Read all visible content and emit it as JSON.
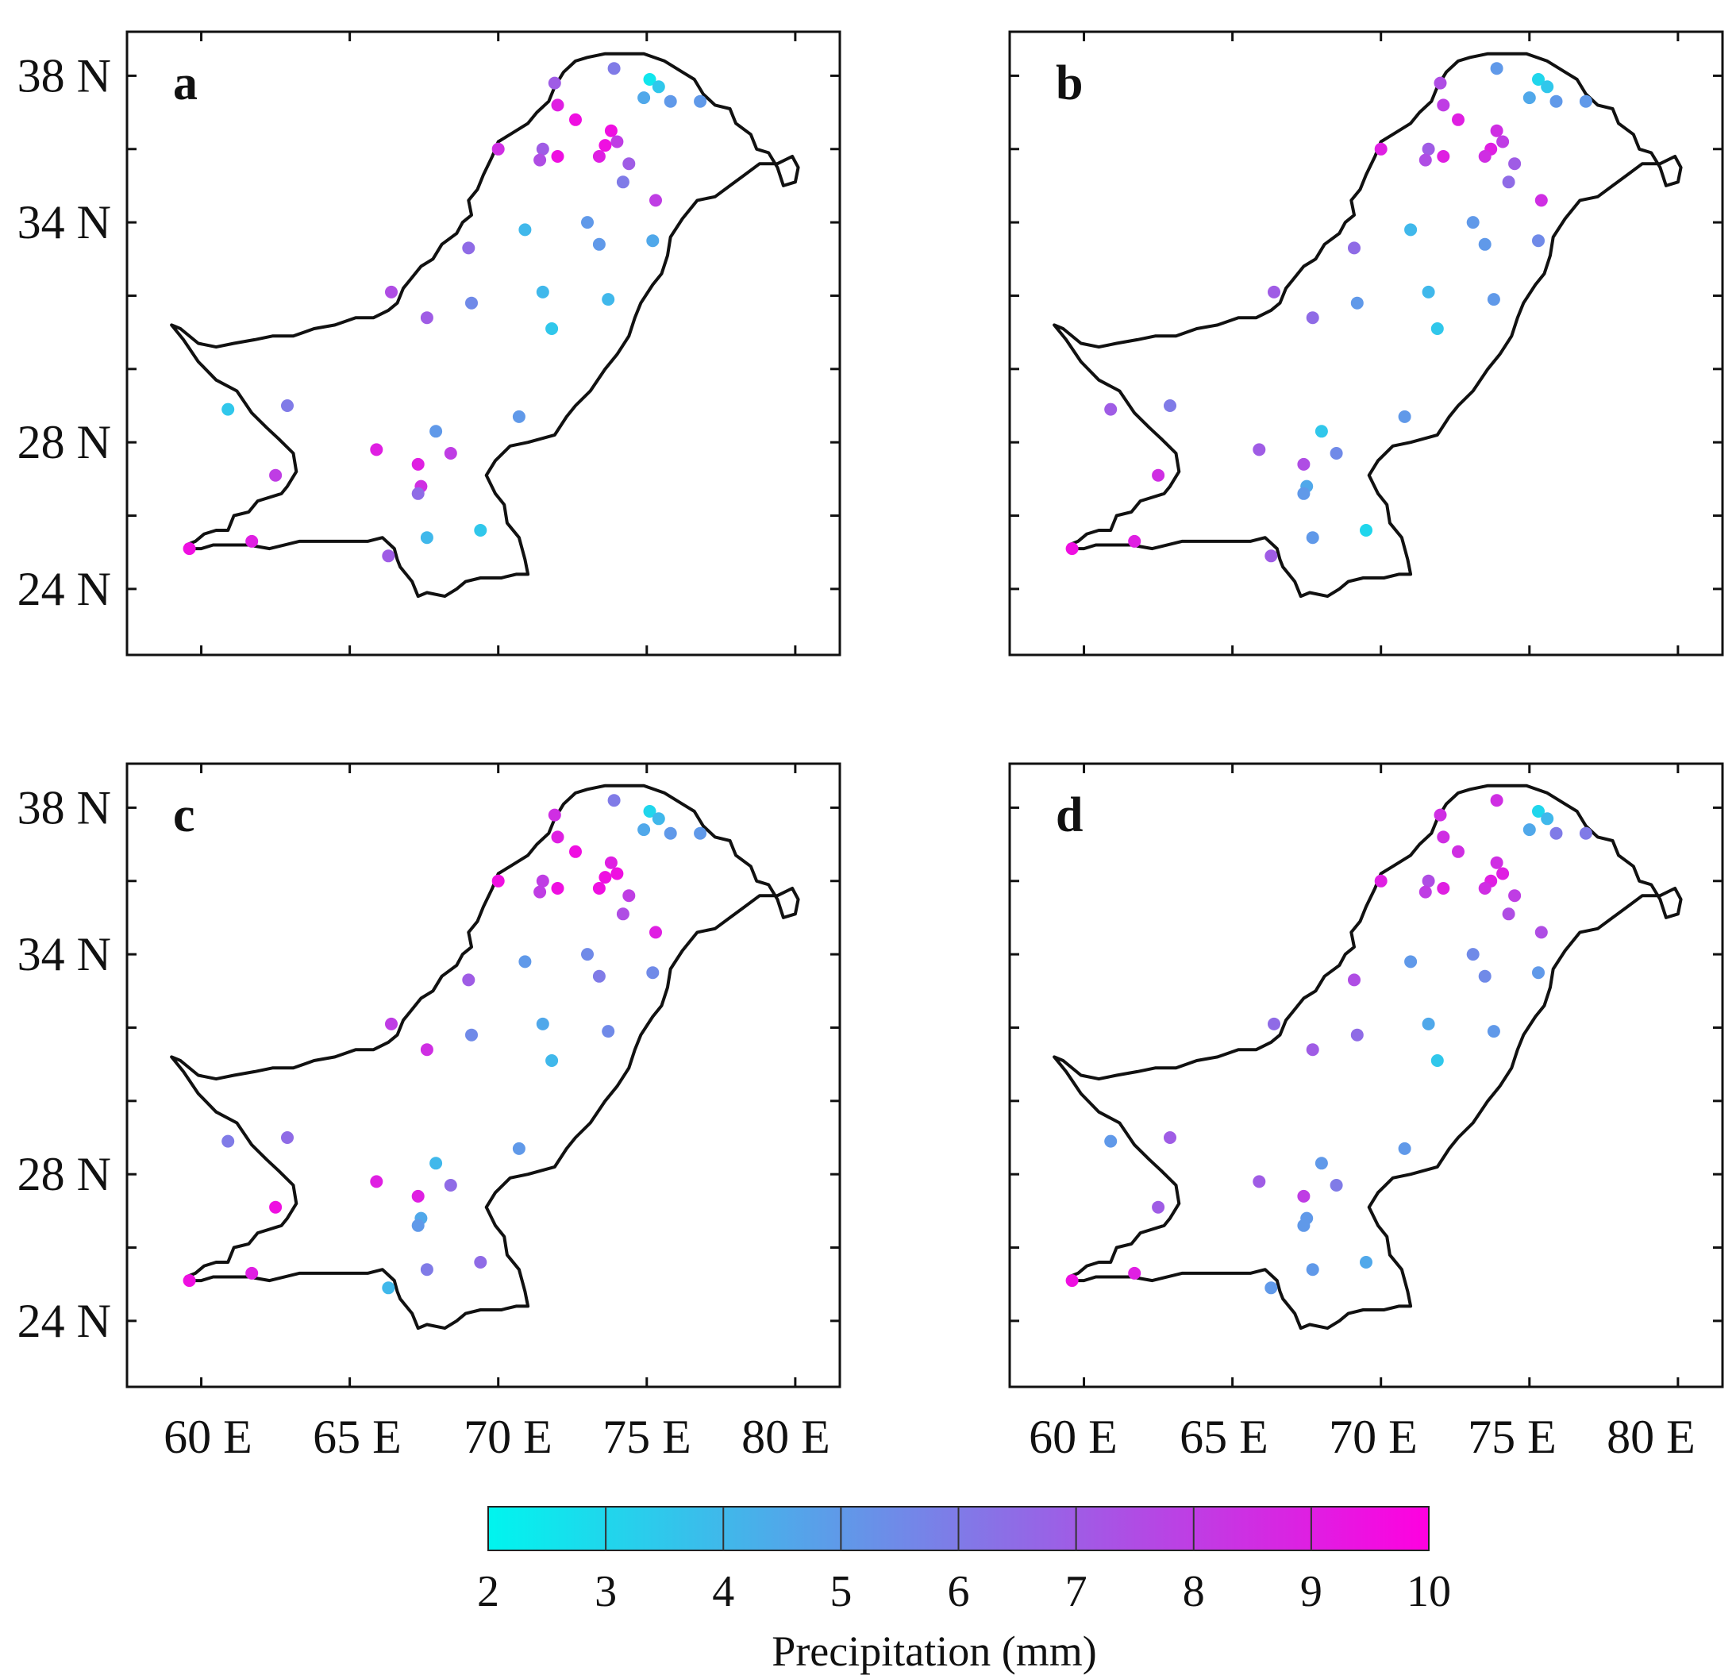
{
  "figure": {
    "x_ticks": [
      "60 E",
      "65 E",
      "70 E",
      "75 E",
      "80 E"
    ],
    "y_ticks": [
      "24 N",
      "28 N",
      "34 N",
      "38 N"
    ],
    "panels": [
      {
        "letter": "a"
      },
      {
        "letter": "b"
      },
      {
        "letter": "c"
      },
      {
        "letter": "d"
      }
    ],
    "colorbar": {
      "ticks": [
        "2",
        "3",
        "4",
        "5",
        "6",
        "7",
        "8",
        "9",
        "10"
      ],
      "title": "Precipitation (mm)",
      "color_low": "#00f5ee",
      "color_high": "#ff00e0"
    }
  },
  "chart_data": [
    {
      "type": "scatter",
      "panel": "a",
      "xlabel": "",
      "ylabel": "",
      "xlim": [
        57.5,
        81.5
      ],
      "ylim": [
        22.2,
        39.2
      ],
      "x_tick_values": [
        60,
        65,
        70,
        75,
        80
      ],
      "y_tick_values": [
        24,
        26,
        28,
        30,
        32,
        34,
        36,
        38
      ],
      "colorbar_range": [
        2,
        10
      ],
      "points": [
        {
          "lon": 75.1,
          "lat": 37.9,
          "value": 2.5
        },
        {
          "lon": 75.4,
          "lat": 37.7,
          "value": 3.5
        },
        {
          "lon": 74.9,
          "lat": 37.4,
          "value": 4.5
        },
        {
          "lon": 75.8,
          "lat": 37.3,
          "value": 5.0
        },
        {
          "lon": 76.8,
          "lat": 37.3,
          "value": 5.0
        },
        {
          "lon": 73.9,
          "lat": 38.2,
          "value": 6.0
        },
        {
          "lon": 71.9,
          "lat": 37.8,
          "value": 7.0
        },
        {
          "lon": 72.0,
          "lat": 37.2,
          "value": 9.0
        },
        {
          "lon": 72.6,
          "lat": 36.8,
          "value": 9.5
        },
        {
          "lon": 73.8,
          "lat": 36.5,
          "value": 9.5
        },
        {
          "lon": 74.0,
          "lat": 36.2,
          "value": 8.0
        },
        {
          "lon": 73.6,
          "lat": 36.1,
          "value": 9.5
        },
        {
          "lon": 73.4,
          "lat": 35.8,
          "value": 9.0
        },
        {
          "lon": 74.4,
          "lat": 35.6,
          "value": 7.0
        },
        {
          "lon": 74.2,
          "lat": 35.1,
          "value": 6.0
        },
        {
          "lon": 70.0,
          "lat": 36.0,
          "value": 8.5
        },
        {
          "lon": 71.5,
          "lat": 36.0,
          "value": 7.0
        },
        {
          "lon": 71.4,
          "lat": 35.7,
          "value": 7.5
        },
        {
          "lon": 72.0,
          "lat": 35.8,
          "value": 9.5
        },
        {
          "lon": 75.3,
          "lat": 34.6,
          "value": 8.0
        },
        {
          "lon": 73.0,
          "lat": 34.0,
          "value": 5.0
        },
        {
          "lon": 70.9,
          "lat": 33.8,
          "value": 4.0
        },
        {
          "lon": 69.0,
          "lat": 33.3,
          "value": 6.5
        },
        {
          "lon": 73.4,
          "lat": 33.4,
          "value": 5.0
        },
        {
          "lon": 75.2,
          "lat": 33.5,
          "value": 4.5
        },
        {
          "lon": 66.4,
          "lat": 32.1,
          "value": 7.5
        },
        {
          "lon": 71.5,
          "lat": 32.1,
          "value": 4.0
        },
        {
          "lon": 69.1,
          "lat": 31.8,
          "value": 5.5
        },
        {
          "lon": 73.7,
          "lat": 31.9,
          "value": 4.0
        },
        {
          "lon": 71.8,
          "lat": 31.1,
          "value": 3.5
        },
        {
          "lon": 67.6,
          "lat": 31.4,
          "value": 7.0
        },
        {
          "lon": 60.9,
          "lat": 28.9,
          "value": 3.5
        },
        {
          "lon": 62.9,
          "lat": 29.0,
          "value": 6.0
        },
        {
          "lon": 70.7,
          "lat": 28.7,
          "value": 5.0
        },
        {
          "lon": 67.9,
          "lat": 28.3,
          "value": 5.0
        },
        {
          "lon": 65.9,
          "lat": 27.8,
          "value": 9.0
        },
        {
          "lon": 68.4,
          "lat": 27.7,
          "value": 8.0
        },
        {
          "lon": 67.3,
          "lat": 27.4,
          "value": 9.0
        },
        {
          "lon": 62.5,
          "lat": 27.1,
          "value": 8.0
        },
        {
          "lon": 67.4,
          "lat": 26.8,
          "value": 8.5
        },
        {
          "lon": 67.3,
          "lat": 26.6,
          "value": 6.5
        },
        {
          "lon": 67.6,
          "lat": 25.4,
          "value": 4.0
        },
        {
          "lon": 69.4,
          "lat": 25.6,
          "value": 3.5
        },
        {
          "lon": 59.6,
          "lat": 25.1,
          "value": 9.5
        },
        {
          "lon": 61.7,
          "lat": 25.3,
          "value": 9.0
        },
        {
          "lon": 66.3,
          "lat": 24.9,
          "value": 7.0
        }
      ]
    },
    {
      "type": "scatter",
      "panel": "b",
      "xlabel": "",
      "ylabel": "",
      "xlim": [
        57.5,
        81.5
      ],
      "ylim": [
        22.2,
        39.2
      ],
      "x_tick_values": [
        60,
        65,
        70,
        75,
        80
      ],
      "y_tick_values": [
        24,
        26,
        28,
        30,
        32,
        34,
        36,
        38
      ],
      "colorbar_range": [
        2,
        10
      ],
      "points": [
        {
          "lon": 75.3,
          "lat": 37.9,
          "value": 3.0
        },
        {
          "lon": 75.6,
          "lat": 37.7,
          "value": 3.5
        },
        {
          "lon": 75.0,
          "lat": 37.4,
          "value": 4.5
        },
        {
          "lon": 75.9,
          "lat": 37.3,
          "value": 5.0
        },
        {
          "lon": 76.9,
          "lat": 37.3,
          "value": 5.0
        },
        {
          "lon": 73.9,
          "lat": 38.2,
          "value": 5.0
        },
        {
          "lon": 72.0,
          "lat": 37.8,
          "value": 7.5
        },
        {
          "lon": 72.1,
          "lat": 37.2,
          "value": 8.0
        },
        {
          "lon": 72.6,
          "lat": 36.8,
          "value": 9.0
        },
        {
          "lon": 73.9,
          "lat": 36.5,
          "value": 8.5
        },
        {
          "lon": 74.1,
          "lat": 36.2,
          "value": 8.0
        },
        {
          "lon": 73.7,
          "lat": 36.0,
          "value": 9.0
        },
        {
          "lon": 73.5,
          "lat": 35.8,
          "value": 8.5
        },
        {
          "lon": 74.5,
          "lat": 35.6,
          "value": 7.0
        },
        {
          "lon": 74.3,
          "lat": 35.1,
          "value": 6.5
        },
        {
          "lon": 70.0,
          "lat": 36.0,
          "value": 9.0
        },
        {
          "lon": 71.6,
          "lat": 36.0,
          "value": 7.0
        },
        {
          "lon": 71.5,
          "lat": 35.7,
          "value": 7.5
        },
        {
          "lon": 72.1,
          "lat": 35.8,
          "value": 9.0
        },
        {
          "lon": 75.4,
          "lat": 34.6,
          "value": 8.5
        },
        {
          "lon": 73.1,
          "lat": 34.0,
          "value": 5.0
        },
        {
          "lon": 71.0,
          "lat": 33.8,
          "value": 4.0
        },
        {
          "lon": 69.1,
          "lat": 33.3,
          "value": 6.5
        },
        {
          "lon": 73.5,
          "lat": 33.4,
          "value": 5.0
        },
        {
          "lon": 75.3,
          "lat": 33.5,
          "value": 5.5
        },
        {
          "lon": 66.4,
          "lat": 32.1,
          "value": 7.0
        },
        {
          "lon": 71.6,
          "lat": 32.1,
          "value": 4.0
        },
        {
          "lon": 69.2,
          "lat": 31.8,
          "value": 5.0
        },
        {
          "lon": 73.8,
          "lat": 31.9,
          "value": 5.0
        },
        {
          "lon": 71.9,
          "lat": 31.1,
          "value": 3.5
        },
        {
          "lon": 67.7,
          "lat": 31.4,
          "value": 6.5
        },
        {
          "lon": 60.9,
          "lat": 28.9,
          "value": 7.0
        },
        {
          "lon": 62.9,
          "lat": 29.0,
          "value": 6.0
        },
        {
          "lon": 70.8,
          "lat": 28.7,
          "value": 5.0
        },
        {
          "lon": 68.0,
          "lat": 28.3,
          "value": 3.5
        },
        {
          "lon": 65.9,
          "lat": 27.8,
          "value": 7.0
        },
        {
          "lon": 68.5,
          "lat": 27.7,
          "value": 5.5
        },
        {
          "lon": 67.4,
          "lat": 27.4,
          "value": 7.5
        },
        {
          "lon": 62.5,
          "lat": 27.1,
          "value": 8.5
        },
        {
          "lon": 67.5,
          "lat": 26.8,
          "value": 4.5
        },
        {
          "lon": 67.4,
          "lat": 26.6,
          "value": 5.0
        },
        {
          "lon": 67.7,
          "lat": 25.4,
          "value": 5.0
        },
        {
          "lon": 69.5,
          "lat": 25.6,
          "value": 3.0
        },
        {
          "lon": 59.6,
          "lat": 25.1,
          "value": 9.5
        },
        {
          "lon": 61.7,
          "lat": 25.3,
          "value": 9.0
        },
        {
          "lon": 66.3,
          "lat": 24.9,
          "value": 7.0
        }
      ]
    },
    {
      "type": "scatter",
      "panel": "c",
      "xlabel": "",
      "ylabel": "",
      "xlim": [
        57.5,
        81.5
      ],
      "ylim": [
        22.2,
        39.2
      ],
      "x_tick_values": [
        60,
        65,
        70,
        75,
        80
      ],
      "y_tick_values": [
        24,
        26,
        28,
        30,
        32,
        34,
        36,
        38
      ],
      "colorbar_range": [
        2,
        10
      ],
      "points": [
        {
          "lon": 75.1,
          "lat": 37.9,
          "value": 3.0
        },
        {
          "lon": 75.4,
          "lat": 37.7,
          "value": 4.0
        },
        {
          "lon": 74.9,
          "lat": 37.4,
          "value": 4.5
        },
        {
          "lon": 75.8,
          "lat": 37.3,
          "value": 5.0
        },
        {
          "lon": 76.8,
          "lat": 37.3,
          "value": 5.0
        },
        {
          "lon": 73.9,
          "lat": 38.2,
          "value": 6.0
        },
        {
          "lon": 71.9,
          "lat": 37.8,
          "value": 8.5
        },
        {
          "lon": 72.0,
          "lat": 37.2,
          "value": 9.0
        },
        {
          "lon": 72.6,
          "lat": 36.8,
          "value": 9.5
        },
        {
          "lon": 73.8,
          "lat": 36.5,
          "value": 9.0
        },
        {
          "lon": 74.0,
          "lat": 36.2,
          "value": 9.5
        },
        {
          "lon": 73.6,
          "lat": 36.1,
          "value": 9.5
        },
        {
          "lon": 73.4,
          "lat": 35.8,
          "value": 9.5
        },
        {
          "lon": 74.4,
          "lat": 35.6,
          "value": 8.0
        },
        {
          "lon": 74.2,
          "lat": 35.1,
          "value": 7.5
        },
        {
          "lon": 70.0,
          "lat": 36.0,
          "value": 9.5
        },
        {
          "lon": 71.5,
          "lat": 36.0,
          "value": 8.0
        },
        {
          "lon": 71.4,
          "lat": 35.7,
          "value": 8.0
        },
        {
          "lon": 72.0,
          "lat": 35.8,
          "value": 9.5
        },
        {
          "lon": 75.3,
          "lat": 34.6,
          "value": 9.0
        },
        {
          "lon": 73.0,
          "lat": 34.0,
          "value": 5.5
        },
        {
          "lon": 70.9,
          "lat": 33.8,
          "value": 5.0
        },
        {
          "lon": 69.0,
          "lat": 33.3,
          "value": 7.0
        },
        {
          "lon": 73.4,
          "lat": 33.4,
          "value": 6.0
        },
        {
          "lon": 75.2,
          "lat": 33.5,
          "value": 5.5
        },
        {
          "lon": 66.4,
          "lat": 32.1,
          "value": 8.0
        },
        {
          "lon": 71.5,
          "lat": 32.1,
          "value": 4.5
        },
        {
          "lon": 69.1,
          "lat": 31.8,
          "value": 5.5
        },
        {
          "lon": 73.7,
          "lat": 31.9,
          "value": 5.5
        },
        {
          "lon": 71.8,
          "lat": 31.1,
          "value": 4.0
        },
        {
          "lon": 67.6,
          "lat": 31.4,
          "value": 8.5
        },
        {
          "lon": 60.9,
          "lat": 28.9,
          "value": 6.0
        },
        {
          "lon": 62.9,
          "lat": 29.0,
          "value": 6.5
        },
        {
          "lon": 70.7,
          "lat": 28.7,
          "value": 5.0
        },
        {
          "lon": 67.9,
          "lat": 28.3,
          "value": 4.0
        },
        {
          "lon": 65.9,
          "lat": 27.8,
          "value": 9.0
        },
        {
          "lon": 68.4,
          "lat": 27.7,
          "value": 6.5
        },
        {
          "lon": 67.3,
          "lat": 27.4,
          "value": 9.0
        },
        {
          "lon": 62.5,
          "lat": 27.1,
          "value": 9.5
        },
        {
          "lon": 67.4,
          "lat": 26.8,
          "value": 4.5
        },
        {
          "lon": 67.3,
          "lat": 26.6,
          "value": 5.0
        },
        {
          "lon": 67.6,
          "lat": 25.4,
          "value": 6.0
        },
        {
          "lon": 69.4,
          "lat": 25.6,
          "value": 6.5
        },
        {
          "lon": 59.6,
          "lat": 25.1,
          "value": 9.5
        },
        {
          "lon": 61.7,
          "lat": 25.3,
          "value": 9.0
        },
        {
          "lon": 66.3,
          "lat": 24.9,
          "value": 4.0
        }
      ]
    },
    {
      "type": "scatter",
      "panel": "d",
      "xlabel": "",
      "ylabel": "",
      "xlim": [
        57.5,
        81.5
      ],
      "ylim": [
        22.2,
        39.2
      ],
      "x_tick_values": [
        60,
        65,
        70,
        75,
        80
      ],
      "y_tick_values": [
        24,
        26,
        28,
        30,
        32,
        34,
        36,
        38
      ],
      "colorbar_range": [
        2,
        10
      ],
      "points": [
        {
          "lon": 75.3,
          "lat": 37.9,
          "value": 3.0
        },
        {
          "lon": 75.6,
          "lat": 37.7,
          "value": 4.0
        },
        {
          "lon": 75.0,
          "lat": 37.4,
          "value": 4.5
        },
        {
          "lon": 75.9,
          "lat": 37.3,
          "value": 6.0
        },
        {
          "lon": 76.9,
          "lat": 37.3,
          "value": 6.0
        },
        {
          "lon": 73.9,
          "lat": 38.2,
          "value": 8.5
        },
        {
          "lon": 72.0,
          "lat": 37.8,
          "value": 8.5
        },
        {
          "lon": 72.1,
          "lat": 37.2,
          "value": 8.5
        },
        {
          "lon": 72.6,
          "lat": 36.8,
          "value": 8.5
        },
        {
          "lon": 73.9,
          "lat": 36.5,
          "value": 8.5
        },
        {
          "lon": 74.1,
          "lat": 36.2,
          "value": 9.0
        },
        {
          "lon": 73.7,
          "lat": 36.0,
          "value": 9.0
        },
        {
          "lon": 73.5,
          "lat": 35.8,
          "value": 8.5
        },
        {
          "lon": 74.5,
          "lat": 35.6,
          "value": 8.0
        },
        {
          "lon": 74.3,
          "lat": 35.1,
          "value": 7.5
        },
        {
          "lon": 70.0,
          "lat": 36.0,
          "value": 9.0
        },
        {
          "lon": 71.6,
          "lat": 36.0,
          "value": 7.5
        },
        {
          "lon": 71.5,
          "lat": 35.7,
          "value": 8.0
        },
        {
          "lon": 72.1,
          "lat": 35.8,
          "value": 9.0
        },
        {
          "lon": 75.4,
          "lat": 34.6,
          "value": 7.5
        },
        {
          "lon": 73.1,
          "lat": 34.0,
          "value": 5.5
        },
        {
          "lon": 71.0,
          "lat": 33.8,
          "value": 5.0
        },
        {
          "lon": 69.1,
          "lat": 33.3,
          "value": 7.5
        },
        {
          "lon": 73.5,
          "lat": 33.4,
          "value": 5.5
        },
        {
          "lon": 75.3,
          "lat": 33.5,
          "value": 5.0
        },
        {
          "lon": 66.4,
          "lat": 32.1,
          "value": 6.5
        },
        {
          "lon": 71.6,
          "lat": 32.1,
          "value": 4.5
        },
        {
          "lon": 69.2,
          "lat": 31.8,
          "value": 6.5
        },
        {
          "lon": 73.8,
          "lat": 31.9,
          "value": 5.0
        },
        {
          "lon": 71.9,
          "lat": 31.1,
          "value": 3.5
        },
        {
          "lon": 67.7,
          "lat": 31.4,
          "value": 7.0
        },
        {
          "lon": 60.9,
          "lat": 28.9,
          "value": 5.0
        },
        {
          "lon": 62.9,
          "lat": 29.0,
          "value": 7.0
        },
        {
          "lon": 70.8,
          "lat": 28.7,
          "value": 5.0
        },
        {
          "lon": 68.0,
          "lat": 28.3,
          "value": 5.0
        },
        {
          "lon": 65.9,
          "lat": 27.8,
          "value": 7.0
        },
        {
          "lon": 68.5,
          "lat": 27.7,
          "value": 6.0
        },
        {
          "lon": 67.4,
          "lat": 27.4,
          "value": 8.0
        },
        {
          "lon": 62.5,
          "lat": 27.1,
          "value": 7.0
        },
        {
          "lon": 67.5,
          "lat": 26.8,
          "value": 5.0
        },
        {
          "lon": 67.4,
          "lat": 26.6,
          "value": 5.0
        },
        {
          "lon": 67.7,
          "lat": 25.4,
          "value": 5.0
        },
        {
          "lon": 69.5,
          "lat": 25.6,
          "value": 4.5
        },
        {
          "lon": 59.6,
          "lat": 25.1,
          "value": 9.5
        },
        {
          "lon": 61.7,
          "lat": 25.3,
          "value": 9.0
        },
        {
          "lon": 66.3,
          "lat": 24.9,
          "value": 5.0
        }
      ]
    }
  ]
}
